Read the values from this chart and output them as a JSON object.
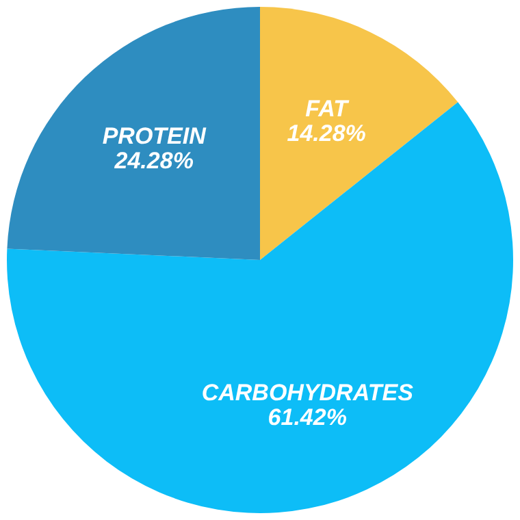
{
  "chart_data": {
    "type": "pie",
    "categories": [
      "FAT",
      "CARBOHYDRATES",
      "PROTEIN"
    ],
    "values": [
      14.28,
      61.42,
      24.28
    ],
    "colors": [
      "#f7c54a",
      "#0dbdf7",
      "#2e8dc0"
    ],
    "value_labels": [
      "14.28%",
      "61.42%",
      "24.28%"
    ],
    "legend": false
  }
}
